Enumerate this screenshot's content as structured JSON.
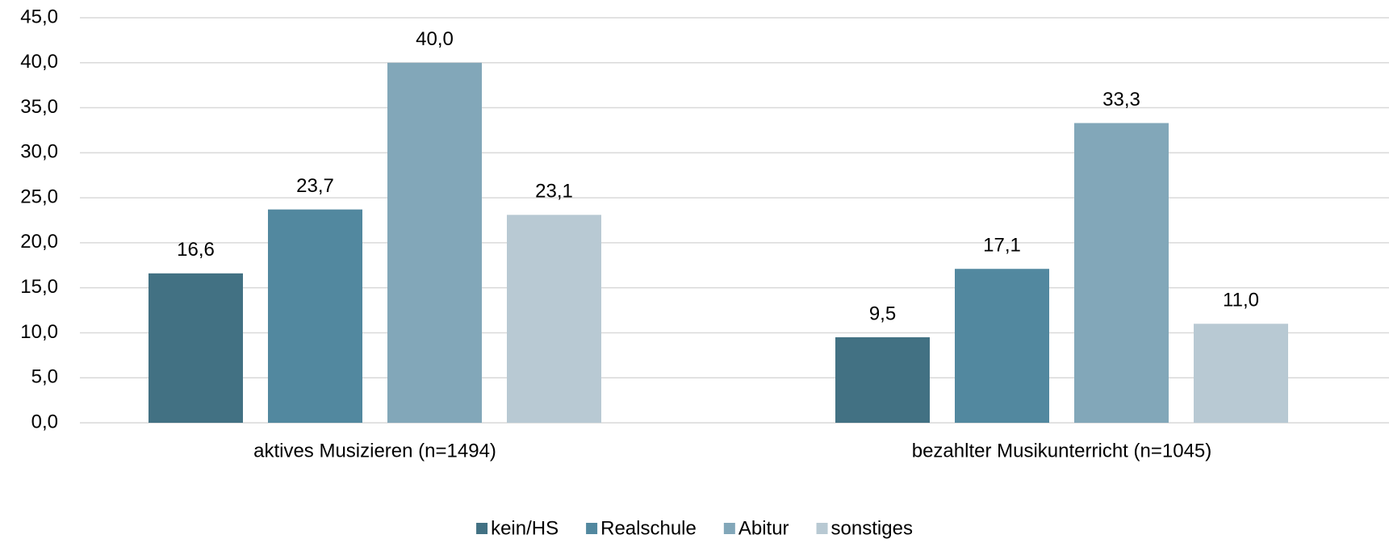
{
  "chart_data": {
    "type": "bar",
    "categories": [
      "aktives Musizieren (n=1494)",
      "bezahlter Musikunterricht (n=1045)"
    ],
    "series": [
      {
        "name": "kein/HS",
        "color": "#427183",
        "values": [
          16.6,
          9.5
        ],
        "value_labels": [
          "16,6",
          "9,5"
        ]
      },
      {
        "name": "Realschule",
        "color": "#52889f",
        "values": [
          23.7,
          17.1
        ],
        "value_labels": [
          "23,7",
          "17,1"
        ]
      },
      {
        "name": "Abitur",
        "color": "#82a7b9",
        "values": [
          40.0,
          33.3
        ],
        "value_labels": [
          "40,0",
          "33,3"
        ]
      },
      {
        "name": "sonstiges",
        "color": "#b8c9d3",
        "values": [
          23.1,
          11.0
        ],
        "value_labels": [
          "23,1",
          "11,0"
        ]
      }
    ],
    "ylim": [
      0,
      45
    ],
    "yticks": [
      {
        "value": 0,
        "label": "0,0"
      },
      {
        "value": 5,
        "label": "5,0"
      },
      {
        "value": 10,
        "label": "10,0"
      },
      {
        "value": 15,
        "label": "15,0"
      },
      {
        "value": 20,
        "label": "20,0"
      },
      {
        "value": 25,
        "label": "25,0"
      },
      {
        "value": 30,
        "label": "30,0"
      },
      {
        "value": 35,
        "label": "35,0"
      },
      {
        "value": 40,
        "label": "40,0"
      },
      {
        "value": 45,
        "label": "45,0"
      }
    ],
    "grid": true,
    "legend": "bottom"
  }
}
